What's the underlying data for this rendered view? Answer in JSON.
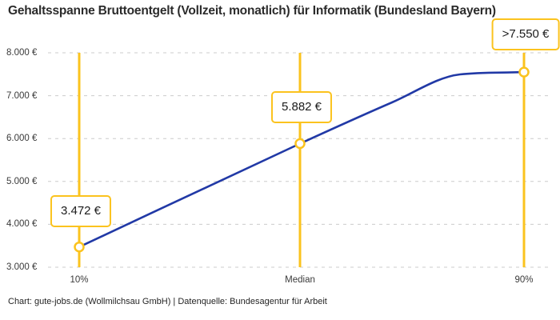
{
  "footer": {
    "credit": "Chart: gute-jobs.de (Wollmilchsau GmbH) | Datenquelle: Bundesagentur für Arbeit"
  },
  "chart_data": {
    "type": "line",
    "title": "Gehaltsspanne Bruttoentgelt (Vollzeit, monatlich) für Informatik (Bundesland Bayern)",
    "categories": [
      "10%",
      "Median",
      "90%"
    ],
    "values": [
      3472,
      5882,
      7550
    ],
    "value_labels": [
      "3.472 €",
      "5.882 €",
      ">7.550 €"
    ],
    "ylim": [
      3000,
      8000
    ],
    "yticks": [
      {
        "value": 8000,
        "label": "8.000 €"
      },
      {
        "value": 7000,
        "label": "7.000 €"
      },
      {
        "value": 6000,
        "label": "6.000 €"
      },
      {
        "value": 5000,
        "label": "5.000 €"
      },
      {
        "value": 4000,
        "label": "4.000 €"
      },
      {
        "value": 3000,
        "label": "3.000 €"
      }
    ],
    "grid": "horizontal-dashed",
    "legend": "none",
    "colors": {
      "line": "#2139A6",
      "accent": "#FBC31E",
      "grid": "#CCCCCC",
      "marker_fill": "#FFFFFF"
    }
  }
}
